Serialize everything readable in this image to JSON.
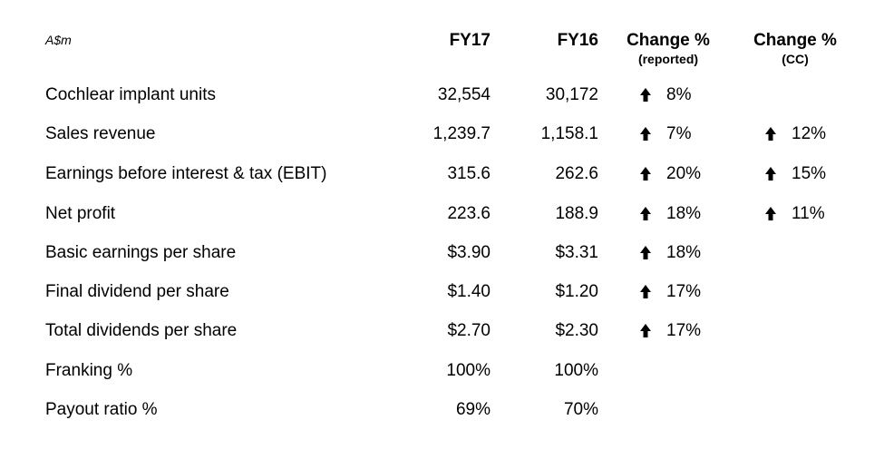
{
  "unit_label": "A$m",
  "headers": {
    "fy17": "FY17",
    "fy16": "FY16",
    "change_reported": "Change %",
    "change_reported_sub": "(reported)",
    "change_cc": "Change %",
    "change_cc_sub": "(CC)"
  },
  "rows": [
    {
      "label": "Cochlear implant units",
      "fy17": "32,554",
      "fy16": "30,172",
      "change_reported": "8%",
      "change_cc": ""
    },
    {
      "label": "Sales revenue",
      "fy17": "1,239.7",
      "fy16": "1,158.1",
      "change_reported": "7%",
      "change_cc": "12%"
    },
    {
      "label": "Earnings before interest & tax (EBIT)",
      "fy17": "315.6",
      "fy16": "262.6",
      "change_reported": "20%",
      "change_cc": "15%"
    },
    {
      "label": "Net profit",
      "fy17": "223.6",
      "fy16": "188.9",
      "change_reported": "18%",
      "change_cc": "11%"
    },
    {
      "label": "Basic earnings per share",
      "fy17": "$3.90",
      "fy16": "$3.31",
      "change_reported": "18%",
      "change_cc": ""
    },
    {
      "label": "Final dividend per share",
      "fy17": "$1.40",
      "fy16": "$1.20",
      "change_reported": "17%",
      "change_cc": ""
    },
    {
      "label": "Total dividends per share",
      "fy17": "$2.70",
      "fy16": "$2.30",
      "change_reported": "17%",
      "change_cc": ""
    },
    {
      "label": "Franking %",
      "fy17": "100%",
      "fy16": "100%",
      "change_reported": "",
      "change_cc": ""
    },
    {
      "label": "Payout ratio %",
      "fy17": "69%",
      "fy16": "70%",
      "change_reported": "",
      "change_cc": ""
    }
  ],
  "icons": {
    "increase": "up-arrow-icon"
  }
}
